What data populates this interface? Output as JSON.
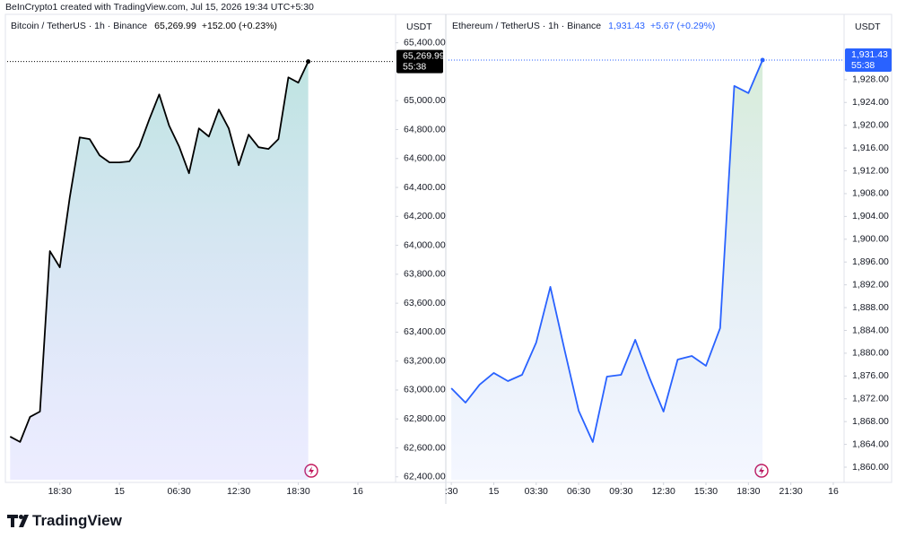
{
  "header": "BeInCrypto1 created with TradingView.com, Jul 15, 2026 19:34 UTC+5:30",
  "footer": "TradingView",
  "chart_data": [
    {
      "type": "area",
      "title": "Bitcoin / TetherUS · 1h · Binance",
      "axis_unit": "USDT",
      "last_label": "65,269.99",
      "change": "+152.00 (+0.23%)",
      "countdown": "55:38",
      "color": "#000000",
      "x": [
        -11,
        -10,
        -9,
        -8,
        -7,
        -6,
        -5,
        -4,
        -3,
        -2,
        -1,
        0,
        1,
        2,
        3,
        4,
        5,
        6,
        7,
        8,
        9,
        10,
        11,
        12,
        13,
        14,
        15,
        16,
        17,
        18,
        19
      ],
      "values": [
        62678,
        62641,
        62814,
        62851,
        63960,
        63848,
        64331,
        64746,
        64734,
        64622,
        64573,
        64573,
        64580,
        64684,
        64870,
        65043,
        64827,
        64684,
        64498,
        64808,
        64752,
        64938,
        64808,
        64554,
        64765,
        64678,
        64666,
        64734,
        65161,
        65124,
        65269.99
      ],
      "xlim": [
        -11.3,
        27.7
      ],
      "xticks": [
        {
          "value": -6,
          "label": "18:30"
        },
        {
          "value": 0,
          "label": "15"
        },
        {
          "value": 6,
          "label": "06:30"
        },
        {
          "value": 12,
          "label": "12:30"
        },
        {
          "value": 18,
          "label": "18:30"
        },
        {
          "value": 24,
          "label": "16"
        }
      ],
      "ylim": [
        62380,
        65460
      ],
      "yticks": [
        {
          "value": 62400,
          "label": "62,400.00"
        },
        {
          "value": 62600,
          "label": "62,600.00"
        },
        {
          "value": 62800,
          "label": "62,800.00"
        },
        {
          "value": 63000,
          "label": "63,000.00"
        },
        {
          "value": 63200,
          "label": "63,200.00"
        },
        {
          "value": 63400,
          "label": "63,400.00"
        },
        {
          "value": 63600,
          "label": "63,600.00"
        },
        {
          "value": 63800,
          "label": "63,800.00"
        },
        {
          "value": 64000,
          "label": "64,000.00"
        },
        {
          "value": 64200,
          "label": "64,200.00"
        },
        {
          "value": 64400,
          "label": "64,400.00"
        },
        {
          "value": 64600,
          "label": "64,600.00"
        },
        {
          "value": 64800,
          "label": "64,800.00"
        },
        {
          "value": 65000,
          "label": "65,000.00"
        },
        {
          "value": 65400,
          "label": "65,400.00"
        }
      ],
      "grid": false
    },
    {
      "type": "area",
      "title": "Ethereum / TetherUS · 1h · Binance",
      "axis_unit": "USDT",
      "last_label": "1,931.43",
      "change": "+5.67 (+0.29%)",
      "countdown": "55:38",
      "color": "#2962ff",
      "x": [
        -3,
        -2,
        -1,
        0,
        1,
        2,
        3,
        4,
        5,
        6,
        7,
        8,
        9,
        10,
        11,
        12,
        13,
        14,
        15,
        16,
        17,
        18,
        19
      ],
      "values": [
        1873.85,
        1871.33,
        1874.48,
        1876.53,
        1875.11,
        1876.21,
        1881.88,
        1891.64,
        1880.62,
        1869.92,
        1864.41,
        1875.9,
        1876.21,
        1882.35,
        1875.74,
        1869.76,
        1878.89,
        1879.52,
        1877.79,
        1884.4,
        1926.9,
        1925.64,
        1931.43
      ],
      "xlim": [
        -3.2,
        24.7
      ],
      "xticks": [
        {
          "value": -3,
          "label": ":30"
        },
        {
          "value": 0,
          "label": "15"
        },
        {
          "value": 3,
          "label": "03:30"
        },
        {
          "value": 6,
          "label": "06:30"
        },
        {
          "value": 9,
          "label": "09:30"
        },
        {
          "value": 12,
          "label": "12:30"
        },
        {
          "value": 15,
          "label": "15:30"
        },
        {
          "value": 18,
          "label": "18:30"
        },
        {
          "value": 21,
          "label": "21:30"
        },
        {
          "value": 24,
          "label": "16"
        }
      ],
      "ylim": [
        1857.8,
        1936
      ],
      "yticks": [
        {
          "value": 1860,
          "label": "1,860.00"
        },
        {
          "value": 1864,
          "label": "1,864.00"
        },
        {
          "value": 1868,
          "label": "1,868.00"
        },
        {
          "value": 1872,
          "label": "1,872.00"
        },
        {
          "value": 1876,
          "label": "1,876.00"
        },
        {
          "value": 1880,
          "label": "1,880.00"
        },
        {
          "value": 1884,
          "label": "1,884.00"
        },
        {
          "value": 1888,
          "label": "1,888.00"
        },
        {
          "value": 1892,
          "label": "1,892.00"
        },
        {
          "value": 1896,
          "label": "1,896.00"
        },
        {
          "value": 1900,
          "label": "1,900.00"
        },
        {
          "value": 1904,
          "label": "1,904.00"
        },
        {
          "value": 1908,
          "label": "1,908.00"
        },
        {
          "value": 1912,
          "label": "1,912.00"
        },
        {
          "value": 1916,
          "label": "1,916.00"
        },
        {
          "value": 1920,
          "label": "1,920.00"
        },
        {
          "value": 1924,
          "label": "1,924.00"
        },
        {
          "value": 1928,
          "label": "1,928.00"
        }
      ],
      "grid": false
    }
  ]
}
